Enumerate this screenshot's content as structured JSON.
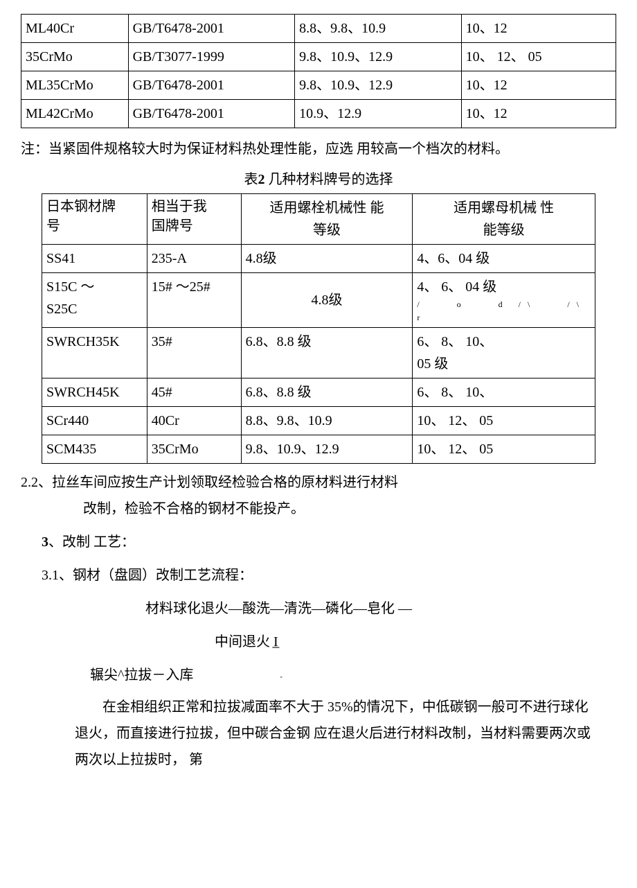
{
  "table1": {
    "rows": [
      [
        "ML40Cr",
        "GB/T6478-2001",
        "8.8、9.8、10.9",
        "10、12"
      ],
      [
        "   35CrMo",
        "GB/T3077-1999",
        "9.8、10.9、12.9",
        "10、 12、 05"
      ],
      [
        "ML35CrMo",
        "GB/T6478-2001",
        "9.8、10.9、12.9",
        "10、12"
      ],
      [
        "ML42CrMo",
        "GB/T6478-2001",
        "10.9、12.9",
        "10、12"
      ]
    ]
  },
  "note": "注：当紧固件规格较大时为保证材料热处理性能，应选 用较高一个档次的材料。",
  "table2_title_prefix": "表",
  "table2_title_num": "2",
  "table2_title_rest": " 几种材料牌号的选择",
  "table2": {
    "header": [
      "日本钢材牌号",
      "相当于我国牌号",
      "适用螺栓机械性 能等级",
      "适用螺母机械 性能等级"
    ],
    "rows": [
      {
        "c1": "SS41",
        "c2": "235-A",
        "c3": "4.8级",
        "c4": "      4、6、04 级"
      },
      {
        "c1": "S15C ～\nS25C",
        "c2": "15# ～25#",
        "c3": "4.8级",
        "c4": "      4、 6、 04 级",
        "marks": "/　　o　　d /\\　　/\\ r"
      },
      {
        "c1": "SWRCH35K",
        "c2": "35#",
        "c3": "6.8、8.8 级",
        "c4": "6、 8、 10、\n05 级"
      },
      {
        "c1": "SWRCH45K",
        "c2": "45#",
        "c3": "6.8、8.8 级",
        "c4": "6、 8、 10、"
      },
      {
        "c1": "SCr440",
        "c2": "40Cr",
        "c3": "8.8、9.8、10.9",
        "c4": "10、 12、 05"
      },
      {
        "c1": "SCM435",
        "c2": "35CrMo",
        "c3": "9.8、10.9、12.9",
        "c4": "10、 12、 05"
      }
    ]
  },
  "section22_l1": "2.2、拉丝车间应按生产计划领取经检验合格的原材料进行材料",
  "section22_l2": "改制，检验不合格的钢材不能投产。",
  "section3": "3",
  "section3_rest": "、改制 工艺：",
  "section31": "3.1、钢材（盘圆）改制工艺流程：",
  "flow_l1": "材料球化退火—酸洗—清洗—磷化—皂化 —",
  "flow_l2": "中间退火 I̲",
  "flow_l3": "辗尖^拉拔－入库",
  "body": "在金相组织正常和拉拔减面率不大于 35%的情况下，中低碳钢一般可不进行球化退火，而直接进行拉拔，但中碳合金钢 应在退火后进行材料改制，当材料需要两次或两次以上拉拔时， 第"
}
